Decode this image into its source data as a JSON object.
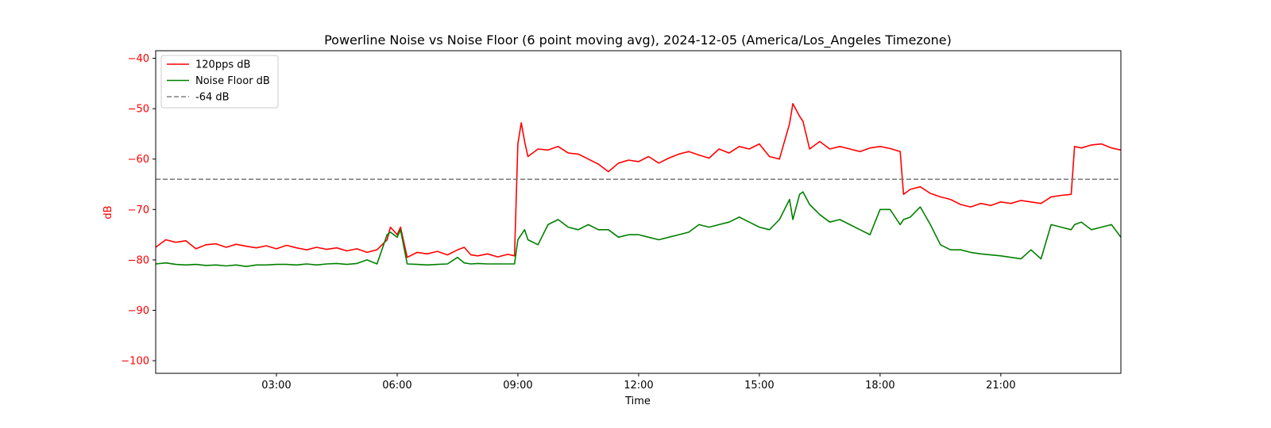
{
  "chart_data": {
    "type": "line",
    "title": "Powerline Noise vs Noise Floor (6 point moving avg), 2024-12-05 (America/Los_Angeles Timezone)",
    "xlabel": "Time",
    "ylabel": "dB",
    "xlim": [
      "00:00",
      "23:59"
    ],
    "ylim": [
      -102.5,
      -38.5
    ],
    "x_ticks": [
      "03:00",
      "06:00",
      "09:00",
      "12:00",
      "15:00",
      "18:00",
      "21:00"
    ],
    "y_ticks": [
      -40,
      -50,
      -60,
      -70,
      -80,
      -90,
      -100
    ],
    "grid": false,
    "legend_position": "top-left",
    "colors": {
      "axis_y": "#ff0000",
      "signal": "#ff0000",
      "noise_floor": "#008000",
      "reference": "#808080"
    },
    "series": [
      {
        "name": "120pps dB",
        "color": "#ff0000",
        "style": "solid",
        "x": [
          "00:00",
          "00:15",
          "00:30",
          "00:45",
          "01:00",
          "01:15",
          "01:30",
          "01:45",
          "02:00",
          "02:15",
          "02:30",
          "02:45",
          "03:00",
          "03:15",
          "03:30",
          "03:45",
          "04:00",
          "04:15",
          "04:30",
          "04:45",
          "05:00",
          "05:15",
          "05:30",
          "05:45",
          "05:50",
          "06:00",
          "06:05",
          "06:15",
          "06:30",
          "06:45",
          "07:00",
          "07:15",
          "07:30",
          "07:40",
          "07:50",
          "08:00",
          "08:15",
          "08:30",
          "08:45",
          "08:55",
          "09:00",
          "09:05",
          "09:10",
          "09:15",
          "09:30",
          "09:45",
          "10:00",
          "10:15",
          "10:30",
          "10:45",
          "11:00",
          "11:15",
          "11:30",
          "11:45",
          "12:00",
          "12:15",
          "12:30",
          "12:45",
          "13:00",
          "13:15",
          "13:30",
          "13:45",
          "14:00",
          "14:15",
          "14:30",
          "14:45",
          "15:00",
          "15:15",
          "15:30",
          "15:45",
          "15:50",
          "16:00",
          "16:05",
          "16:15",
          "16:30",
          "16:45",
          "17:00",
          "17:15",
          "17:30",
          "17:45",
          "18:00",
          "18:15",
          "18:30",
          "18:35",
          "18:45",
          "19:00",
          "19:15",
          "19:30",
          "19:45",
          "20:00",
          "20:15",
          "20:30",
          "20:45",
          "21:00",
          "21:15",
          "21:30",
          "21:45",
          "22:00",
          "22:15",
          "22:30",
          "22:45",
          "22:50",
          "23:00",
          "23:15",
          "23:30",
          "23:45",
          "23:59"
        ],
        "y": [
          -77.5,
          -76.0,
          -76.5,
          -76.2,
          -77.8,
          -77.0,
          -76.8,
          -77.5,
          -76.9,
          -77.3,
          -77.6,
          -77.2,
          -77.8,
          -77.1,
          -77.6,
          -78.0,
          -77.5,
          -77.9,
          -77.6,
          -78.2,
          -77.8,
          -78.5,
          -78.0,
          -76.0,
          -73.5,
          -75.0,
          -73.5,
          -79.5,
          -78.5,
          -78.8,
          -78.3,
          -79.0,
          -78.0,
          -77.5,
          -79.0,
          -79.2,
          -78.8,
          -79.4,
          -78.9,
          -79.2,
          -57.0,
          -52.8,
          -56.5,
          -59.5,
          -58.0,
          -58.2,
          -57.5,
          -58.8,
          -59.0,
          -60.0,
          -61.0,
          -62.5,
          -60.8,
          -60.2,
          -60.5,
          -59.5,
          -60.8,
          -59.8,
          -59.0,
          -58.5,
          -59.2,
          -59.8,
          -58.0,
          -58.8,
          -57.5,
          -58.0,
          -57.0,
          -59.5,
          -60.0,
          -53.0,
          -49.0,
          -51.5,
          -52.5,
          -58.0,
          -56.5,
          -58.0,
          -57.5,
          -58.0,
          -58.5,
          -57.8,
          -57.5,
          -57.9,
          -58.5,
          -67.0,
          -66.0,
          -65.5,
          -66.8,
          -67.5,
          -68.0,
          -69.0,
          -69.5,
          -68.8,
          -69.2,
          -68.5,
          -68.8,
          -68.2,
          -68.5,
          -68.8,
          -67.5,
          -67.2,
          -67.0,
          -57.5,
          -57.8,
          -57.2,
          -57.0,
          -57.8,
          -58.2
        ]
      },
      {
        "name": "Noise Floor dB",
        "color": "#008000",
        "style": "solid",
        "x": [
          "00:00",
          "00:15",
          "00:30",
          "00:45",
          "01:00",
          "01:15",
          "01:30",
          "01:45",
          "02:00",
          "02:15",
          "02:30",
          "02:45",
          "03:00",
          "03:15",
          "03:30",
          "03:45",
          "04:00",
          "04:15",
          "04:30",
          "04:45",
          "05:00",
          "05:15",
          "05:30",
          "05:45",
          "05:50",
          "06:00",
          "06:05",
          "06:15",
          "06:30",
          "06:45",
          "07:00",
          "07:15",
          "07:30",
          "07:40",
          "07:50",
          "08:00",
          "08:15",
          "08:30",
          "08:45",
          "08:55",
          "09:00",
          "09:05",
          "09:10",
          "09:15",
          "09:30",
          "09:45",
          "10:00",
          "10:15",
          "10:30",
          "10:45",
          "11:00",
          "11:15",
          "11:30",
          "11:45",
          "12:00",
          "12:15",
          "12:30",
          "12:45",
          "13:00",
          "13:15",
          "13:30",
          "13:45",
          "14:00",
          "14:15",
          "14:30",
          "14:45",
          "15:00",
          "15:15",
          "15:30",
          "15:45",
          "15:50",
          "16:00",
          "16:05",
          "16:15",
          "16:30",
          "16:45",
          "17:00",
          "17:15",
          "17:30",
          "17:45",
          "18:00",
          "18:15",
          "18:30",
          "18:35",
          "18:45",
          "19:00",
          "19:15",
          "19:30",
          "19:45",
          "20:00",
          "20:15",
          "20:30",
          "20:45",
          "21:00",
          "21:15",
          "21:30",
          "21:45",
          "22:00",
          "22:15",
          "22:30",
          "22:45",
          "22:50",
          "23:00",
          "23:15",
          "23:30",
          "23:45",
          "23:59"
        ],
        "y": [
          -80.8,
          -80.6,
          -80.9,
          -81.0,
          -80.9,
          -81.1,
          -81.0,
          -81.2,
          -81.0,
          -81.3,
          -81.0,
          -81.0,
          -80.9,
          -80.9,
          -81.0,
          -80.8,
          -81.0,
          -80.8,
          -80.7,
          -80.9,
          -80.7,
          -80.0,
          -80.8,
          -75.0,
          -74.5,
          -75.5,
          -74.0,
          -80.8,
          -80.9,
          -81.0,
          -80.9,
          -80.8,
          -79.5,
          -80.6,
          -80.8,
          -80.7,
          -80.8,
          -80.8,
          -80.8,
          -80.8,
          -76.0,
          -75.0,
          -74.0,
          -76.0,
          -77.0,
          -73.0,
          -72.0,
          -73.5,
          -74.0,
          -73.0,
          -74.0,
          -74.0,
          -75.5,
          -75.0,
          -75.0,
          -75.5,
          -76.0,
          -75.5,
          -75.0,
          -74.5,
          -73.0,
          -73.5,
          -73.0,
          -72.5,
          -71.5,
          -72.5,
          -73.5,
          -74.0,
          -72.0,
          -68.0,
          -72.0,
          -67.0,
          -66.5,
          -69.0,
          -71.0,
          -72.5,
          -72.0,
          -73.0,
          -74.0,
          -75.0,
          -70.0,
          -70.0,
          -73.0,
          -72.0,
          -71.5,
          -69.5,
          -73.0,
          -77.0,
          -78.0,
          -78.0,
          -78.5,
          -78.8,
          -79.0,
          -79.2,
          -79.5,
          -79.8,
          -78.0,
          -79.8,
          -73.0,
          -73.5,
          -74.0,
          -73.0,
          -72.5,
          -74.0,
          -73.5,
          -73.0,
          -75.5
        ]
      },
      {
        "name": "-64 dB",
        "color": "#808080",
        "style": "dashed",
        "x": [
          "00:00",
          "23:59"
        ],
        "y": [
          -64,
          -64
        ]
      }
    ]
  }
}
